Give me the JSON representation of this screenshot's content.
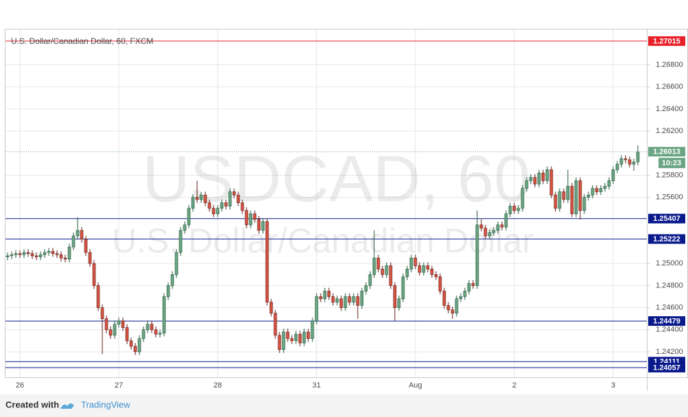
{
  "chart_data": {
    "type": "candlestick",
    "title": "U.S. Dollar/Canadian Dollar, 60, FXCM",
    "watermark": "USDCAD, 60",
    "watermark_sub": "U.S. Dollar/Canadian Dollar",
    "footer": {
      "prefix": "Created with",
      "brand": "TradingView"
    },
    "up_color": "#6ba583",
    "down_color": "#d75442",
    "ylim": [
      1.2397,
      1.2712
    ],
    "yticks": [
      {
        "value": 1.242,
        "label": "1.24200"
      },
      {
        "value": 1.244,
        "label": "1.24400"
      },
      {
        "value": 1.246,
        "label": "1.24600"
      },
      {
        "value": 1.248,
        "label": "1.24800"
      },
      {
        "value": 1.25,
        "label": "1.25000"
      },
      {
        "value": 1.256,
        "label": "1.25600"
      },
      {
        "value": 1.258,
        "label": "1.25800"
      },
      {
        "value": 1.262,
        "label": "1.26200"
      },
      {
        "value": 1.264,
        "label": "1.26400"
      },
      {
        "value": 1.266,
        "label": "1.26600"
      },
      {
        "value": 1.268,
        "label": "1.26800"
      }
    ],
    "grid": true,
    "levels": [
      {
        "value": 1.27015,
        "label": "1.27015",
        "color": "#e8202a"
      },
      {
        "value": 1.25407,
        "label": "1.25407",
        "color": "#0a1a8c"
      },
      {
        "value": 1.25222,
        "label": "1.25222",
        "color": "#0a1a8c"
      },
      {
        "value": 1.24479,
        "label": "1.24479",
        "color": "#0a1a8c"
      },
      {
        "value": 1.24111,
        "label": "1.24111",
        "color": "#0a1a8c"
      },
      {
        "value": 1.24057,
        "label": "1.24057",
        "color": "#0a1a8c"
      }
    ],
    "last": {
      "value": 1.26013,
      "label": "1.26013",
      "countdown": "10:23",
      "color": "#6ba583"
    },
    "categories": [
      null,
      null,
      null,
      "26",
      null,
      null,
      null,
      null,
      null,
      null,
      null,
      null,
      null,
      null,
      null,
      null,
      null,
      null,
      null,
      null,
      null,
      null,
      null,
      null,
      null,
      null,
      null,
      "27",
      null,
      null,
      null,
      null,
      null,
      null,
      null,
      null,
      null,
      null,
      null,
      null,
      null,
      null,
      null,
      null,
      null,
      null,
      null,
      null,
      null,
      null,
      null,
      "28",
      null,
      null,
      null,
      null,
      null,
      null,
      null,
      null,
      null,
      null,
      null,
      null,
      null,
      null,
      null,
      null,
      null,
      null,
      null,
      null,
      null,
      null,
      null,
      "31",
      null,
      null,
      null,
      null,
      null,
      null,
      null,
      null,
      null,
      null,
      null,
      null,
      null,
      null,
      null,
      null,
      null,
      null,
      null,
      null,
      null,
      null,
      null,
      "Aug",
      null,
      null,
      null,
      null,
      null,
      null,
      null,
      null,
      null,
      null,
      null,
      null,
      null,
      null,
      null,
      null,
      null,
      null,
      null,
      null,
      null,
      null,
      null,
      "2",
      null,
      null,
      null,
      null,
      null,
      null,
      null,
      null,
      null,
      null,
      null,
      null,
      null,
      null,
      null,
      null,
      null,
      null,
      null,
      null,
      null,
      null,
      null,
      "3",
      null,
      null,
      null,
      null,
      null,
      null
    ],
    "open": [
      1.2506,
      1.2507,
      1.2508,
      1.2509,
      1.2508,
      1.251,
      1.2509,
      1.2507,
      1.2506,
      1.2508,
      1.251,
      1.2511,
      1.2509,
      1.2508,
      1.2505,
      1.2504,
      1.2515,
      1.2525,
      1.253,
      1.2522,
      1.251,
      1.25,
      1.248,
      1.246,
      1.245,
      1.244,
      1.2435,
      1.2445,
      1.2448,
      1.2442,
      1.243,
      1.2425,
      1.242,
      1.2432,
      1.244,
      1.2445,
      1.244,
      1.2436,
      1.2437,
      1.247,
      1.248,
      1.249,
      1.251,
      1.253,
      1.2535,
      1.255,
      1.256,
      1.2558,
      1.2562,
      1.2555,
      1.255,
      1.2545,
      1.255,
      1.2555,
      1.2552,
      1.2565,
      1.2562,
      1.2555,
      1.2548,
      1.2535,
      1.2545,
      1.254,
      1.253,
      1.2538,
      1.2465,
      1.2455,
      1.2435,
      1.2422,
      1.2438,
      1.2432,
      1.243,
      1.2436,
      1.2428,
      1.2438,
      1.2432,
      1.2448,
      1.247,
      1.2468,
      1.2475,
      1.247,
      1.2465,
      1.2468,
      1.246,
      1.247,
      1.2465,
      1.247,
      1.2462,
      1.2475,
      1.248,
      1.249,
      1.2505,
      1.2495,
      1.249,
      1.2498,
      1.248,
      1.246,
      1.2468,
      1.2488,
      1.2495,
      1.2505,
      1.2498,
      1.2492,
      1.2498,
      1.2495,
      1.249,
      1.2488,
      1.2475,
      1.2462,
      1.2458,
      1.2455,
      1.2468,
      1.247,
      1.2475,
      1.2482,
      1.248,
      1.2535,
      1.2532,
      1.2525,
      1.2528,
      1.253,
      1.2535,
      1.2533,
      1.2545,
      1.2552,
      1.2548,
      1.255,
      1.2568,
      1.2575,
      1.2578,
      1.2572,
      1.2582,
      1.2575,
      1.2585,
      1.2562,
      1.255,
      1.2565,
      1.2558,
      1.257,
      1.2545,
      1.2575,
      1.2548,
      1.256,
      1.2562,
      1.2568,
      1.2565,
      1.2568,
      1.257,
      1.2575,
      1.2585,
      1.259,
      1.2595,
      1.2594,
      1.259,
      1.2592
    ],
    "high": [
      1.251,
      1.2511,
      1.2512,
      1.2512,
      1.2513,
      1.2513,
      1.2512,
      1.251,
      1.2511,
      1.2513,
      1.2514,
      1.2514,
      1.2512,
      1.2511,
      1.2508,
      1.2518,
      1.2528,
      1.2542,
      1.2533,
      1.2525,
      1.2513,
      1.2503,
      1.2483,
      1.2463,
      1.2453,
      1.2443,
      1.2448,
      1.2451,
      1.2451,
      1.2445,
      1.2433,
      1.2428,
      1.2435,
      1.2443,
      1.2448,
      1.2448,
      1.2443,
      1.244,
      1.2473,
      1.2483,
      1.2493,
      1.2513,
      1.2533,
      1.2538,
      1.2553,
      1.2563,
      1.2575,
      1.2565,
      1.2565,
      1.2558,
      1.2553,
      1.2553,
      1.2558,
      1.2558,
      1.2568,
      1.2568,
      1.2565,
      1.2558,
      1.2551,
      1.2548,
      1.2548,
      1.2543,
      1.2541,
      1.2541,
      1.2468,
      1.2458,
      1.2438,
      1.2441,
      1.2441,
      1.2435,
      1.2439,
      1.2439,
      1.2441,
      1.2441,
      1.2451,
      1.2473,
      1.2473,
      1.2478,
      1.2478,
      1.2473,
      1.2471,
      1.2471,
      1.2473,
      1.2473,
      1.2473,
      1.2473,
      1.2478,
      1.2483,
      1.2493,
      1.253,
      1.2508,
      1.2498,
      1.2501,
      1.2501,
      1.2483,
      1.2471,
      1.2491,
      1.2498,
      1.2508,
      1.2508,
      1.2501,
      1.2501,
      1.2501,
      1.2498,
      1.2493,
      1.2491,
      1.2478,
      1.2465,
      1.2461,
      1.2471,
      1.2473,
      1.2478,
      1.2485,
      1.2485,
      1.2548,
      1.254,
      1.2535,
      1.2531,
      1.2533,
      1.2538,
      1.2538,
      1.2548,
      1.2555,
      1.2555,
      1.2553,
      1.2571,
      1.2578,
      1.2581,
      1.2581,
      1.2585,
      1.2585,
      1.2588,
      1.2588,
      1.2565,
      1.2568,
      1.2568,
      1.2585,
      1.2573,
      1.2578,
      1.2578,
      1.2563,
      1.2565,
      1.2571,
      1.2571,
      1.2571,
      1.2573,
      1.2578,
      1.2588,
      1.2593,
      1.2598,
      1.2598,
      1.2597,
      1.2595,
      1.2607
    ],
    "low": [
      1.2503,
      1.2504,
      1.2505,
      1.2505,
      1.2505,
      1.2506,
      1.2504,
      1.2503,
      1.2503,
      1.2505,
      1.2507,
      1.2506,
      1.2505,
      1.2502,
      1.2501,
      1.2501,
      1.2512,
      1.2522,
      1.2519,
      1.2507,
      1.2497,
      1.2477,
      1.2457,
      1.2418,
      1.2437,
      1.2432,
      1.2432,
      1.2442,
      1.2439,
      1.2427,
      1.2422,
      1.2417,
      1.2417,
      1.2429,
      1.2437,
      1.2437,
      1.2433,
      1.2433,
      1.2434,
      1.2467,
      1.2477,
      1.2487,
      1.2507,
      1.2527,
      1.2532,
      1.2547,
      1.2555,
      1.2555,
      1.2552,
      1.2547,
      1.2542,
      1.2542,
      1.2547,
      1.2549,
      1.2549,
      1.2559,
      1.2552,
      1.2545,
      1.2532,
      1.2532,
      1.2537,
      1.2527,
      1.2527,
      1.2462,
      1.2452,
      1.2432,
      1.2419,
      1.2419,
      1.2429,
      1.2427,
      1.2427,
      1.2425,
      1.2425,
      1.2429,
      1.2429,
      1.2445,
      1.2465,
      1.2465,
      1.2467,
      1.2462,
      1.2462,
      1.2457,
      1.2457,
      1.2462,
      1.2462,
      1.245,
      1.2459,
      1.2472,
      1.2477,
      1.2487,
      1.2492,
      1.2487,
      1.2487,
      1.2477,
      1.2448,
      1.2457,
      1.2465,
      1.2485,
      1.2492,
      1.2495,
      1.2489,
      1.2489,
      1.2492,
      1.2487,
      1.2485,
      1.2472,
      1.2459,
      1.2455,
      1.245,
      1.2452,
      1.2465,
      1.2467,
      1.2472,
      1.2477,
      1.2477,
      1.2529,
      1.2522,
      1.2522,
      1.2525,
      1.2527,
      1.253,
      1.253,
      1.2542,
      1.2545,
      1.2545,
      1.2547,
      1.2565,
      1.2572,
      1.2569,
      1.2569,
      1.2572,
      1.2572,
      1.2559,
      1.2547,
      1.2547,
      1.2555,
      1.2555,
      1.2542,
      1.2542,
      1.254,
      1.2545,
      1.2557,
      1.2559,
      1.2562,
      1.2562,
      1.2565,
      1.2567,
      1.2572,
      1.2582,
      1.2587,
      1.2591,
      1.2587,
      1.2584,
      1.2589
    ],
    "close": [
      1.2507,
      1.2508,
      1.2509,
      1.2508,
      1.251,
      1.2509,
      1.2507,
      1.2506,
      1.2508,
      1.251,
      1.2511,
      1.2509,
      1.2508,
      1.2505,
      1.2504,
      1.2515,
      1.2525,
      1.253,
      1.2522,
      1.251,
      1.25,
      1.248,
      1.246,
      1.245,
      1.244,
      1.2435,
      1.2445,
      1.2448,
      1.2442,
      1.243,
      1.2425,
      1.242,
      1.2432,
      1.244,
      1.2445,
      1.244,
      1.2436,
      1.2437,
      1.247,
      1.248,
      1.249,
      1.251,
      1.253,
      1.2535,
      1.255,
      1.256,
      1.2558,
      1.2562,
      1.2555,
      1.255,
      1.2545,
      1.255,
      1.2555,
      1.2552,
      1.2565,
      1.2562,
      1.2555,
      1.2548,
      1.2535,
      1.2545,
      1.254,
      1.253,
      1.2538,
      1.2465,
      1.2455,
      1.2435,
      1.2422,
      1.2438,
      1.2432,
      1.243,
      1.2436,
      1.2428,
      1.2438,
      1.2432,
      1.2448,
      1.247,
      1.2468,
      1.2475,
      1.247,
      1.2465,
      1.2468,
      1.246,
      1.247,
      1.2465,
      1.247,
      1.2462,
      1.2475,
      1.248,
      1.249,
      1.2505,
      1.2495,
      1.249,
      1.2498,
      1.248,
      1.246,
      1.2468,
      1.2488,
      1.2495,
      1.2505,
      1.2498,
      1.2492,
      1.2498,
      1.2495,
      1.249,
      1.2488,
      1.2475,
      1.2462,
      1.2458,
      1.2455,
      1.2468,
      1.247,
      1.2475,
      1.2482,
      1.248,
      1.2535,
      1.2532,
      1.2525,
      1.2528,
      1.253,
      1.2535,
      1.2533,
      1.2545,
      1.2552,
      1.2548,
      1.255,
      1.2568,
      1.2575,
      1.2578,
      1.2572,
      1.2582,
      1.2575,
      1.2585,
      1.2562,
      1.255,
      1.2565,
      1.2558,
      1.257,
      1.2545,
      1.2575,
      1.2548,
      1.256,
      1.2562,
      1.2568,
      1.2565,
      1.2568,
      1.257,
      1.2575,
      1.2585,
      1.259,
      1.2595,
      1.2594,
      1.259,
      1.2592,
      1.2601
    ]
  }
}
